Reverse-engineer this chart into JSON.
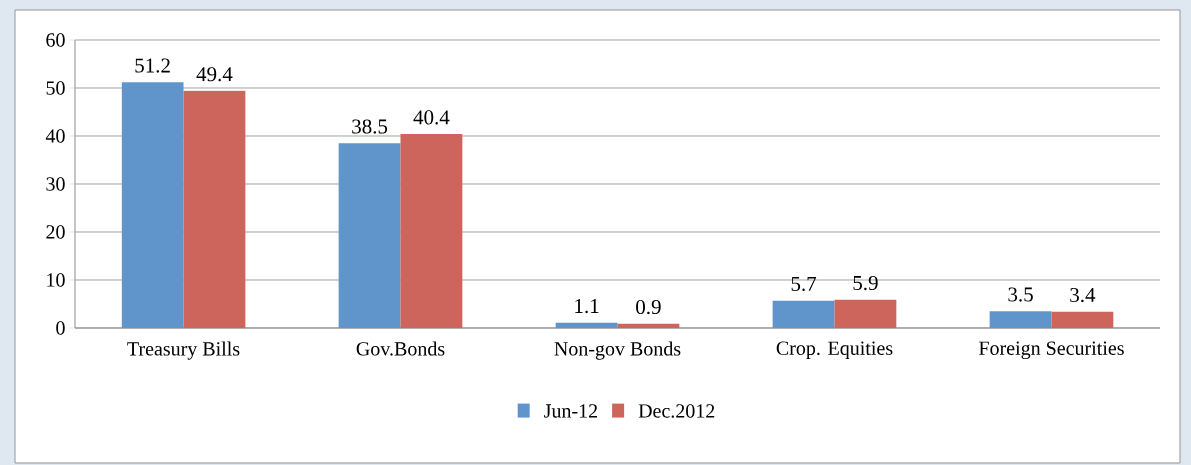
{
  "chart_data": {
    "type": "bar",
    "categories": [
      "Treasury Bills",
      "Gov.Bonds",
      "Non-gov Bonds",
      "Crop. Equities",
      "Foreign Securities"
    ],
    "series": [
      {
        "name": "Jun-12",
        "color": "#6095cc",
        "values": [
          51.2,
          38.5,
          1.1,
          5.7,
          3.5
        ]
      },
      {
        "name": "Dec.2012",
        "color": "#cd655d",
        "values": [
          49.4,
          40.4,
          0.9,
          5.9,
          3.4
        ]
      }
    ],
    "ylim": [
      0,
      60
    ],
    "yticks": [
      0,
      10,
      20,
      30,
      40,
      50,
      60
    ],
    "data_labels": true,
    "legend": "bottom",
    "grid": "y"
  }
}
